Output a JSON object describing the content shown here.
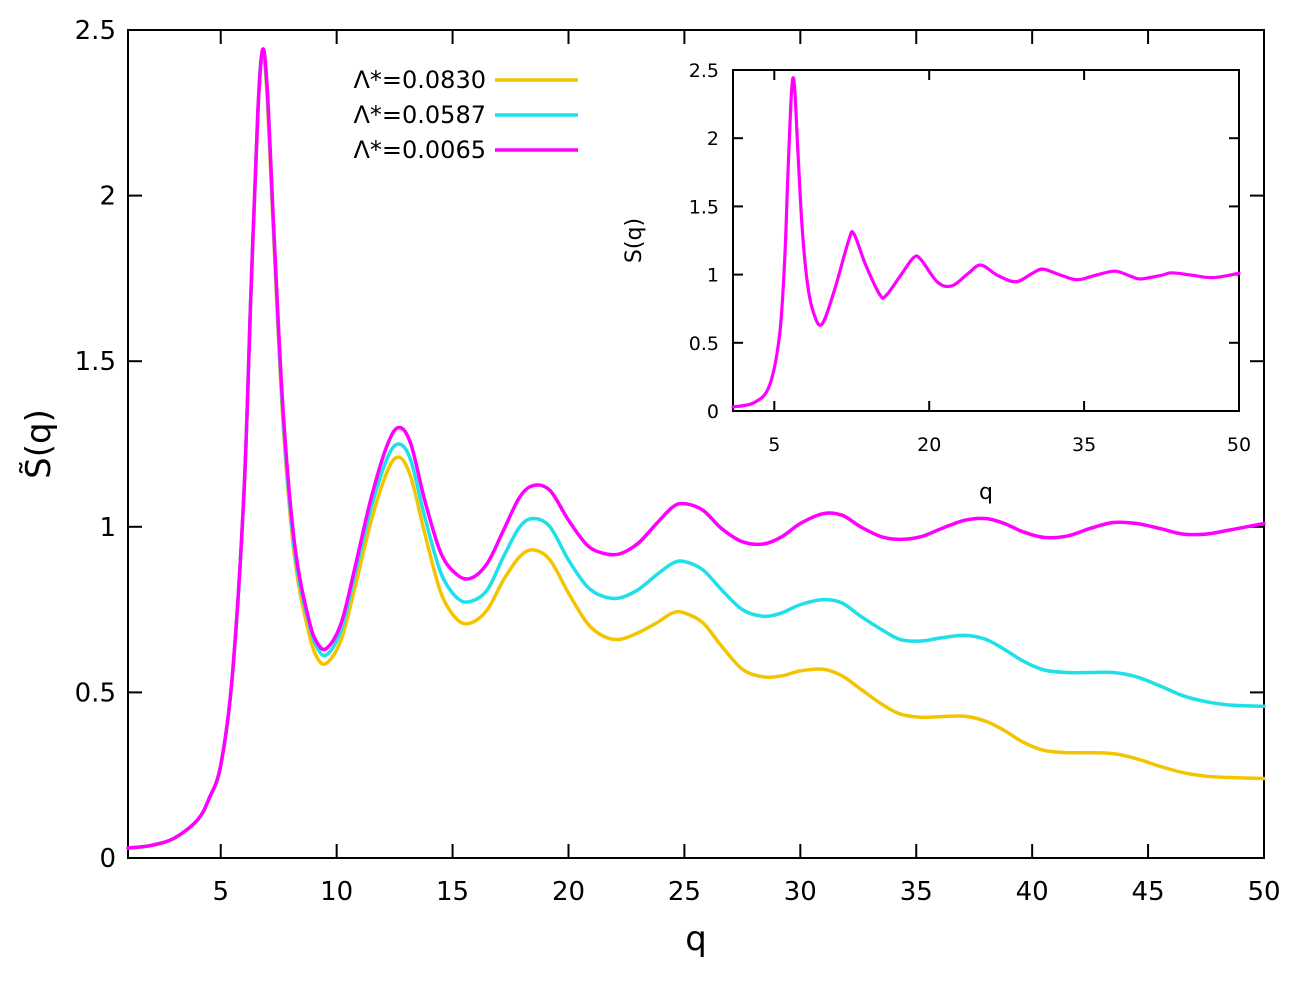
{
  "chart_data": [
    {
      "type": "line",
      "xlabel": "q",
      "ylabel": "S̃(q)",
      "xlim": [
        1,
        50
      ],
      "ylim": [
        0,
        2.5
      ],
      "xticks": [
        5,
        10,
        15,
        20,
        25,
        30,
        35,
        40,
        45,
        50
      ],
      "yticks": [
        0,
        0.5,
        1,
        1.5,
        2,
        2.5
      ],
      "xtick_labels": [
        "5",
        "10",
        "15",
        "20",
        "25",
        "30",
        "35",
        "40",
        "45",
        "50"
      ],
      "ytick_labels": [
        "0",
        "0.5",
        "1",
        "1.5",
        "2",
        "2.5"
      ],
      "grid": false,
      "legend_position": "top-center",
      "series": [
        {
          "name": "Λ*=0.0830",
          "color": "#F5C400",
          "points": [
            [
              1,
              0.03
            ],
            [
              2,
              0.038
            ],
            [
              3,
              0.06
            ],
            [
              4,
              0.115
            ],
            [
              4.5,
              0.18
            ],
            [
              5,
              0.28
            ],
            [
              5.5,
              0.55
            ],
            [
              6,
              1.1
            ],
            [
              6.3,
              1.7
            ],
            [
              6.6,
              2.25
            ],
            [
              6.8,
              2.42
            ],
            [
              7.0,
              2.3
            ],
            [
              7.3,
              1.85
            ],
            [
              7.7,
              1.3
            ],
            [
              8.2,
              0.9
            ],
            [
              8.8,
              0.68
            ],
            [
              9.2,
              0.6
            ],
            [
              9.6,
              0.59
            ],
            [
              10.2,
              0.66
            ],
            [
              10.8,
              0.82
            ],
            [
              11.5,
              1.02
            ],
            [
              12.2,
              1.17
            ],
            [
              12.7,
              1.21
            ],
            [
              13.2,
              1.15
            ],
            [
              13.8,
              0.98
            ],
            [
              14.5,
              0.8
            ],
            [
              15.2,
              0.72
            ],
            [
              15.8,
              0.71
            ],
            [
              16.5,
              0.75
            ],
            [
              17.2,
              0.84
            ],
            [
              17.9,
              0.91
            ],
            [
              18.5,
              0.93
            ],
            [
              19.2,
              0.9
            ],
            [
              20,
              0.8
            ],
            [
              20.8,
              0.71
            ],
            [
              21.5,
              0.67
            ],
            [
              22.2,
              0.66
            ],
            [
              23,
              0.68
            ],
            [
              23.8,
              0.71
            ],
            [
              24.5,
              0.74
            ],
            [
              25,
              0.74
            ],
            [
              25.8,
              0.71
            ],
            [
              26.6,
              0.64
            ],
            [
              27.5,
              0.57
            ],
            [
              28.4,
              0.547
            ],
            [
              29.2,
              0.55
            ],
            [
              30,
              0.565
            ],
            [
              31,
              0.57
            ],
            [
              31.8,
              0.55
            ],
            [
              32.6,
              0.51
            ],
            [
              33.5,
              0.465
            ],
            [
              34.3,
              0.435
            ],
            [
              35.2,
              0.425
            ],
            [
              36.1,
              0.427
            ],
            [
              37.1,
              0.428
            ],
            [
              38,
              0.413
            ],
            [
              38.8,
              0.385
            ],
            [
              39.6,
              0.35
            ],
            [
              40.5,
              0.325
            ],
            [
              41.5,
              0.318
            ],
            [
              42.5,
              0.318
            ],
            [
              43.5,
              0.315
            ],
            [
              44.5,
              0.3
            ],
            [
              45.5,
              0.277
            ],
            [
              46.5,
              0.258
            ],
            [
              47.5,
              0.247
            ],
            [
              48.5,
              0.243
            ],
            [
              50,
              0.24
            ]
          ]
        },
        {
          "name": "Λ*=0.0587",
          "color": "#1FE0E8",
          "points": [
            [
              1,
              0.03
            ],
            [
              2,
              0.038
            ],
            [
              3,
              0.06
            ],
            [
              4,
              0.115
            ],
            [
              4.5,
              0.18
            ],
            [
              5,
              0.28
            ],
            [
              5.5,
              0.55
            ],
            [
              6,
              1.1
            ],
            [
              6.3,
              1.7
            ],
            [
              6.6,
              2.25
            ],
            [
              6.8,
              2.43
            ],
            [
              7.0,
              2.32
            ],
            [
              7.3,
              1.87
            ],
            [
              7.7,
              1.32
            ],
            [
              8.2,
              0.92
            ],
            [
              8.8,
              0.71
            ],
            [
              9.2,
              0.63
            ],
            [
              9.6,
              0.615
            ],
            [
              10.2,
              0.69
            ],
            [
              10.8,
              0.86
            ],
            [
              11.5,
              1.06
            ],
            [
              12.2,
              1.21
            ],
            [
              12.7,
              1.25
            ],
            [
              13.2,
              1.2
            ],
            [
              13.8,
              1.03
            ],
            [
              14.5,
              0.86
            ],
            [
              15.2,
              0.785
            ],
            [
              15.8,
              0.775
            ],
            [
              16.5,
              0.81
            ],
            [
              17.2,
              0.91
            ],
            [
              17.9,
              1.0
            ],
            [
              18.5,
              1.025
            ],
            [
              19.2,
              1.0
            ],
            [
              20,
              0.9
            ],
            [
              20.8,
              0.82
            ],
            [
              21.5,
              0.79
            ],
            [
              22.2,
              0.785
            ],
            [
              23,
              0.81
            ],
            [
              23.8,
              0.855
            ],
            [
              24.5,
              0.89
            ],
            [
              25,
              0.895
            ],
            [
              25.8,
              0.87
            ],
            [
              26.6,
              0.81
            ],
            [
              27.5,
              0.75
            ],
            [
              28.4,
              0.73
            ],
            [
              29.2,
              0.74
            ],
            [
              30,
              0.765
            ],
            [
              31,
              0.78
            ],
            [
              31.8,
              0.77
            ],
            [
              32.6,
              0.73
            ],
            [
              33.5,
              0.69
            ],
            [
              34.3,
              0.66
            ],
            [
              35.2,
              0.655
            ],
            [
              36.1,
              0.665
            ],
            [
              37.1,
              0.672
            ],
            [
              38,
              0.66
            ],
            [
              38.8,
              0.63
            ],
            [
              39.6,
              0.595
            ],
            [
              40.5,
              0.568
            ],
            [
              41.5,
              0.56
            ],
            [
              42.5,
              0.56
            ],
            [
              43.5,
              0.56
            ],
            [
              44.5,
              0.547
            ],
            [
              45.5,
              0.52
            ],
            [
              46.5,
              0.49
            ],
            [
              47.5,
              0.472
            ],
            [
              48.5,
              0.462
            ],
            [
              50,
              0.458
            ]
          ]
        },
        {
          "name": "Λ*=0.0065",
          "color": "#FF00FF",
          "points": [
            [
              1,
              0.03
            ],
            [
              2,
              0.038
            ],
            [
              3,
              0.06
            ],
            [
              4,
              0.115
            ],
            [
              4.5,
              0.18
            ],
            [
              5,
              0.28
            ],
            [
              5.5,
              0.55
            ],
            [
              6,
              1.1
            ],
            [
              6.3,
              1.7
            ],
            [
              6.6,
              2.25
            ],
            [
              6.8,
              2.44
            ],
            [
              7.0,
              2.33
            ],
            [
              7.3,
              1.88
            ],
            [
              7.7,
              1.34
            ],
            [
              8.2,
              0.94
            ],
            [
              8.8,
              0.72
            ],
            [
              9.2,
              0.645
            ],
            [
              9.6,
              0.635
            ],
            [
              10.2,
              0.71
            ],
            [
              10.8,
              0.88
            ],
            [
              11.5,
              1.09
            ],
            [
              12.2,
              1.25
            ],
            [
              12.7,
              1.3
            ],
            [
              13.2,
              1.25
            ],
            [
              13.8,
              1.08
            ],
            [
              14.5,
              0.92
            ],
            [
              15.2,
              0.855
            ],
            [
              15.8,
              0.845
            ],
            [
              16.5,
              0.89
            ],
            [
              17.2,
              0.99
            ],
            [
              17.9,
              1.09
            ],
            [
              18.5,
              1.125
            ],
            [
              19.2,
              1.11
            ],
            [
              20,
              1.02
            ],
            [
              20.8,
              0.945
            ],
            [
              21.5,
              0.92
            ],
            [
              22.2,
              0.918
            ],
            [
              23,
              0.95
            ],
            [
              23.8,
              1.01
            ],
            [
              24.5,
              1.06
            ],
            [
              25,
              1.07
            ],
            [
              25.8,
              1.05
            ],
            [
              26.6,
              0.995
            ],
            [
              27.5,
              0.955
            ],
            [
              28.4,
              0.948
            ],
            [
              29.2,
              0.97
            ],
            [
              30,
              1.01
            ],
            [
              31,
              1.04
            ],
            [
              31.8,
              1.035
            ],
            [
              32.6,
              1.0
            ],
            [
              33.5,
              0.97
            ],
            [
              34.3,
              0.962
            ],
            [
              35.2,
              0.97
            ],
            [
              36.1,
              0.995
            ],
            [
              37.1,
              1.02
            ],
            [
              38,
              1.025
            ],
            [
              38.8,
              1.01
            ],
            [
              39.6,
              0.985
            ],
            [
              40.5,
              0.968
            ],
            [
              41.5,
              0.972
            ],
            [
              42.5,
              0.995
            ],
            [
              43.5,
              1.013
            ],
            [
              44.5,
              1.01
            ],
            [
              45.5,
              0.995
            ],
            [
              46.5,
              0.978
            ],
            [
              47.5,
              0.978
            ],
            [
              48.5,
              0.99
            ],
            [
              50,
              1.01
            ]
          ]
        }
      ]
    },
    {
      "type": "line",
      "xlabel": "q",
      "ylabel": "S(q)",
      "xlim": [
        1,
        50
      ],
      "ylim": [
        0,
        2.5
      ],
      "xticks": [
        5,
        20,
        35,
        50
      ],
      "yticks": [
        0,
        0.5,
        1,
        1.5,
        2,
        2.5
      ],
      "xtick_labels": [
        "5",
        "20",
        "35",
        "50"
      ],
      "ytick_labels": [
        "0",
        "0.5",
        "1",
        "1.5",
        "2",
        "2.5"
      ],
      "grid": false,
      "series": [
        {
          "color": "#FF00FF",
          "points": [
            [
              1,
              0.03
            ],
            [
              3,
              0.06
            ],
            [
              4.5,
              0.18
            ],
            [
              5.5,
              0.55
            ],
            [
              6,
              1.1
            ],
            [
              6.3,
              1.7
            ],
            [
              6.6,
              2.25
            ],
            [
              6.8,
              2.44
            ],
            [
              7.0,
              2.33
            ],
            [
              7.3,
              1.88
            ],
            [
              7.7,
              1.34
            ],
            [
              8.2,
              0.94
            ],
            [
              8.8,
              0.72
            ],
            [
              9.6,
              0.635
            ],
            [
              10.8,
              0.88
            ],
            [
              12.2,
              1.25
            ],
            [
              12.7,
              1.3
            ],
            [
              13.8,
              1.08
            ],
            [
              15.2,
              0.855
            ],
            [
              15.8,
              0.845
            ],
            [
              17.2,
              0.99
            ],
            [
              18.5,
              1.125
            ],
            [
              19.2,
              1.11
            ],
            [
              20.8,
              0.945
            ],
            [
              22.2,
              0.918
            ],
            [
              23.8,
              1.01
            ],
            [
              25,
              1.07
            ],
            [
              26.6,
              0.995
            ],
            [
              28.4,
              0.948
            ],
            [
              30,
              1.01
            ],
            [
              31,
              1.04
            ],
            [
              32.6,
              1.0
            ],
            [
              34.3,
              0.962
            ],
            [
              36.1,
              0.995
            ],
            [
              38,
              1.025
            ],
            [
              39.6,
              0.985
            ],
            [
              40.5,
              0.968
            ],
            [
              42.5,
              0.995
            ],
            [
              43.5,
              1.013
            ],
            [
              45.5,
              0.995
            ],
            [
              47.5,
              0.978
            ],
            [
              50,
              1.01
            ]
          ]
        }
      ]
    }
  ]
}
